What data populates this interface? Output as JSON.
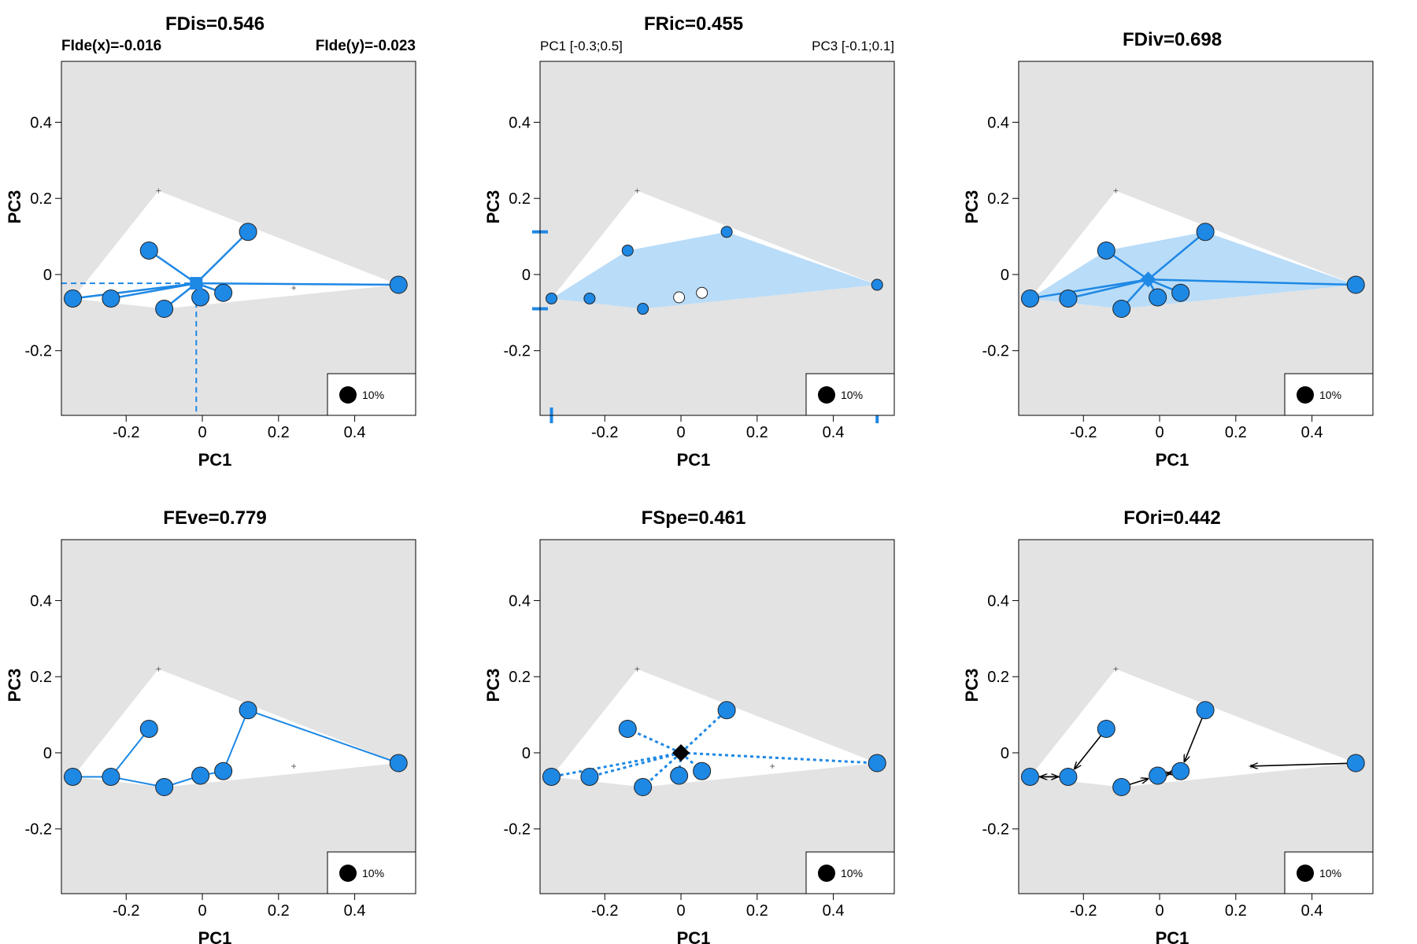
{
  "chart_data": [
    {
      "type": "scatter",
      "panel": "FDis",
      "title": "FDis=0.546",
      "subtitle_left": "FIde(x)=-0.016",
      "subtitle_right": "FIde(y)=-0.023",
      "xlabel": "PC1",
      "ylabel": "PC3",
      "xticks": [
        "-0.2",
        "0",
        "0.2",
        "0.4"
      ],
      "yticks": [
        "-0.2",
        "0",
        "0.2",
        "0.4"
      ],
      "legend_label": "10%",
      "centroid": {
        "x": -0.016,
        "y": -0.023
      },
      "points": [
        {
          "x": -0.34,
          "y": -0.063
        },
        {
          "x": -0.24,
          "y": -0.063
        },
        {
          "x": -0.14,
          "y": 0.063
        },
        {
          "x": -0.1,
          "y": -0.09
        },
        {
          "x": -0.005,
          "y": -0.06
        },
        {
          "x": 0.055,
          "y": -0.048
        },
        {
          "x": 0.12,
          "y": 0.112
        },
        {
          "x": 0.515,
          "y": -0.027
        }
      ]
    },
    {
      "type": "scatter",
      "panel": "FRic",
      "title": "FRic=0.455",
      "subtitle_left": "PC1 [-0.3;0.5]",
      "subtitle_right": "PC3 [-0.1;0.1]",
      "xlabel": "PC1",
      "ylabel": "PC3",
      "xticks": [
        "-0.2",
        "0",
        "0.2",
        "0.4"
      ],
      "yticks": [
        "-0.2",
        "0",
        "0.2",
        "0.4"
      ],
      "legend_label": "10%",
      "hull_vertices": [
        {
          "x": -0.34,
          "y": -0.063
        },
        {
          "x": -0.14,
          "y": 0.063
        },
        {
          "x": 0.12,
          "y": 0.112
        },
        {
          "x": 0.515,
          "y": -0.027
        },
        {
          "x": -0.1,
          "y": -0.09
        }
      ],
      "vertex_points": [
        {
          "x": -0.34,
          "y": -0.063
        },
        {
          "x": -0.24,
          "y": -0.063
        },
        {
          "x": -0.14,
          "y": 0.063
        },
        {
          "x": -0.1,
          "y": -0.09
        },
        {
          "x": 0.12,
          "y": 0.112
        },
        {
          "x": 0.515,
          "y": -0.027
        }
      ],
      "interior_points": [
        {
          "x": -0.005,
          "y": -0.06
        },
        {
          "x": 0.055,
          "y": -0.048
        }
      ],
      "range_x": [
        -0.34,
        0.515
      ],
      "range_y": [
        -0.09,
        0.112
      ]
    },
    {
      "type": "scatter",
      "panel": "FDiv",
      "title": "FDiv=0.698",
      "xlabel": "PC1",
      "ylabel": "PC3",
      "xticks": [
        "-0.2",
        "0",
        "0.2",
        "0.4"
      ],
      "yticks": [
        "-0.2",
        "0",
        "0.2",
        "0.4"
      ],
      "legend_label": "10%",
      "gravity_center": {
        "x": -0.03,
        "y": -0.013
      },
      "points": [
        {
          "x": -0.34,
          "y": -0.063
        },
        {
          "x": -0.24,
          "y": -0.063
        },
        {
          "x": -0.14,
          "y": 0.063
        },
        {
          "x": -0.1,
          "y": -0.09
        },
        {
          "x": -0.005,
          "y": -0.06
        },
        {
          "x": 0.055,
          "y": -0.048
        },
        {
          "x": 0.12,
          "y": 0.112
        },
        {
          "x": 0.515,
          "y": -0.027
        }
      ]
    },
    {
      "type": "scatter",
      "panel": "FEve",
      "title": "FEve=0.779",
      "xlabel": "PC1",
      "ylabel": "PC3",
      "xticks": [
        "-0.2",
        "0",
        "0.2",
        "0.4"
      ],
      "yticks": [
        "-0.2",
        "0",
        "0.2",
        "0.4"
      ],
      "legend_label": "10%",
      "points": [
        {
          "x": -0.34,
          "y": -0.063
        },
        {
          "x": -0.24,
          "y": -0.063
        },
        {
          "x": -0.14,
          "y": 0.063
        },
        {
          "x": -0.1,
          "y": -0.09
        },
        {
          "x": -0.005,
          "y": -0.06
        },
        {
          "x": 0.055,
          "y": -0.048
        },
        {
          "x": 0.12,
          "y": 0.112
        },
        {
          "x": 0.515,
          "y": -0.027
        }
      ],
      "mst_edges": [
        [
          0,
          1
        ],
        [
          1,
          2
        ],
        [
          1,
          3
        ],
        [
          3,
          4
        ],
        [
          4,
          5
        ],
        [
          5,
          6
        ],
        [
          6,
          7
        ]
      ]
    },
    {
      "type": "scatter",
      "panel": "FSpe",
      "title": "FSpe=0.461",
      "xlabel": "PC1",
      "ylabel": "PC3",
      "xticks": [
        "-0.2",
        "0",
        "0.2",
        "0.4"
      ],
      "yticks": [
        "-0.2",
        "0",
        "0.2",
        "0.4"
      ],
      "legend_label": "10%",
      "center": {
        "x": 0,
        "y": 0
      },
      "points": [
        {
          "x": -0.34,
          "y": -0.063
        },
        {
          "x": -0.24,
          "y": -0.063
        },
        {
          "x": -0.14,
          "y": 0.063
        },
        {
          "x": -0.1,
          "y": -0.09
        },
        {
          "x": -0.005,
          "y": -0.06
        },
        {
          "x": 0.055,
          "y": -0.048
        },
        {
          "x": 0.12,
          "y": 0.112
        },
        {
          "x": 0.515,
          "y": -0.027
        }
      ]
    },
    {
      "type": "scatter",
      "panel": "FOri",
      "title": "FOri=0.442",
      "xlabel": "PC1",
      "ylabel": "PC3",
      "xticks": [
        "-0.2",
        "0",
        "0.2",
        "0.4"
      ],
      "yticks": [
        "-0.2",
        "0",
        "0.2",
        "0.4"
      ],
      "legend_label": "10%",
      "points": [
        {
          "x": -0.34,
          "y": -0.063
        },
        {
          "x": -0.24,
          "y": -0.063
        },
        {
          "x": -0.14,
          "y": 0.063
        },
        {
          "x": -0.1,
          "y": -0.09
        },
        {
          "x": -0.005,
          "y": -0.06
        },
        {
          "x": 0.055,
          "y": -0.048
        },
        {
          "x": 0.12,
          "y": 0.112
        },
        {
          "x": 0.515,
          "y": -0.027
        }
      ],
      "nearest_neighbor_arrows": [
        {
          "from": 0,
          "to": 1
        },
        {
          "from": 1,
          "to": 0
        },
        {
          "from": 2,
          "to": 1
        },
        {
          "from": 3,
          "to": 4
        },
        {
          "from": 4,
          "to": 5
        },
        {
          "from": 5,
          "to": 4
        },
        {
          "from": 6,
          "to": 5
        },
        {
          "from": 7,
          "to_point": {
            "x": 0.24,
            "y": -0.035
          }
        }
      ]
    }
  ],
  "shared": {
    "xlim": [
      -0.37,
      0.56
    ],
    "ylim": [
      -0.37,
      0.56
    ],
    "global_hull": [
      {
        "x": -0.115,
        "y": 0.22
      },
      {
        "x": 0.515,
        "y": -0.027
      },
      {
        "x": -0.1,
        "y": -0.09
      },
      {
        "x": -0.34,
        "y": -0.063
      }
    ],
    "plus_markers": [
      {
        "x": -0.115,
        "y": 0.22
      },
      {
        "x": 0.24,
        "y": -0.035
      }
    ],
    "colors": {
      "accent": "#1e88e5",
      "hull_fill": "#b9dcf8",
      "background": "#e3e3e3",
      "global_region": "#ffffff"
    }
  }
}
